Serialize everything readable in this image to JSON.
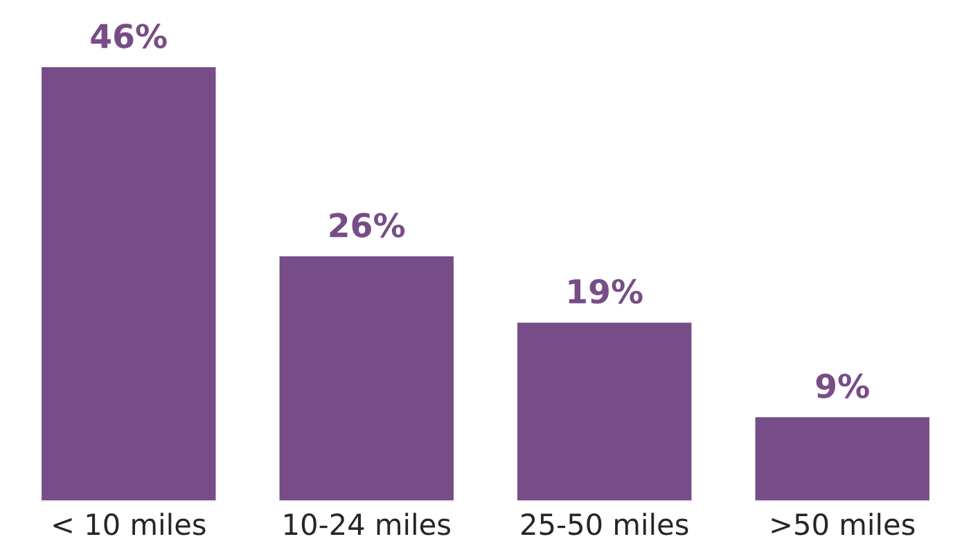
{
  "chart_data": {
    "type": "bar",
    "categories": [
      "< 10 miles",
      "10-24 miles",
      "25-50 miles",
      ">50 miles"
    ],
    "values": [
      46,
      26,
      19,
      9
    ],
    "value_labels": [
      "46%",
      "26%",
      "19%",
      "9%"
    ],
    "color": "#774d87",
    "grid": false,
    "legend": false
  }
}
